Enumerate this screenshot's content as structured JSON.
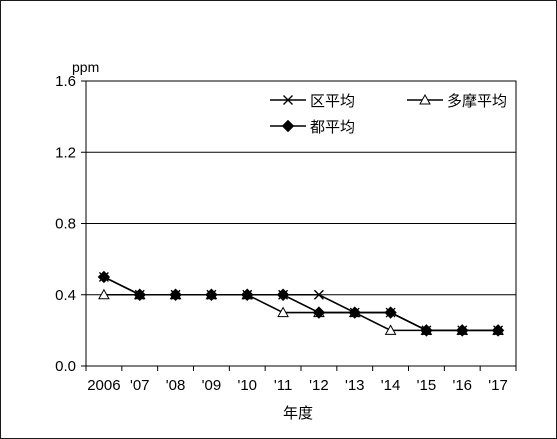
{
  "chart_data": {
    "type": "line",
    "ylabel": "ppm",
    "xlabel": "年度",
    "ylim": [
      0.0,
      1.6
    ],
    "yticks": [
      "0.0",
      "0.4",
      "0.8",
      "1.2",
      "1.6"
    ],
    "categories": [
      "2006",
      "'07",
      "'08",
      "'09",
      "'10",
      "'11",
      "'12",
      "'13",
      "'14",
      "'15",
      "'16",
      "'17"
    ],
    "grid": true,
    "legend_position": "top-right",
    "series": [
      {
        "name": "区平均",
        "marker": "x",
        "values": [
          0.5,
          0.4,
          0.4,
          0.4,
          0.4,
          0.4,
          0.4,
          0.3,
          0.3,
          0.2,
          0.2,
          0.2
        ]
      },
      {
        "name": "多摩平均",
        "marker": "triangle",
        "values": [
          0.4,
          0.4,
          0.4,
          0.4,
          0.4,
          0.3,
          0.3,
          0.3,
          0.2,
          0.2,
          0.2,
          0.2
        ]
      },
      {
        "name": "都平均",
        "marker": "diamond",
        "values": [
          0.5,
          0.4,
          0.4,
          0.4,
          0.4,
          0.4,
          0.3,
          0.3,
          0.3,
          0.2,
          0.2,
          0.2
        ]
      }
    ]
  },
  "colors": {
    "line": "#000000",
    "grid": "#000000",
    "background": "#ffffff"
  }
}
